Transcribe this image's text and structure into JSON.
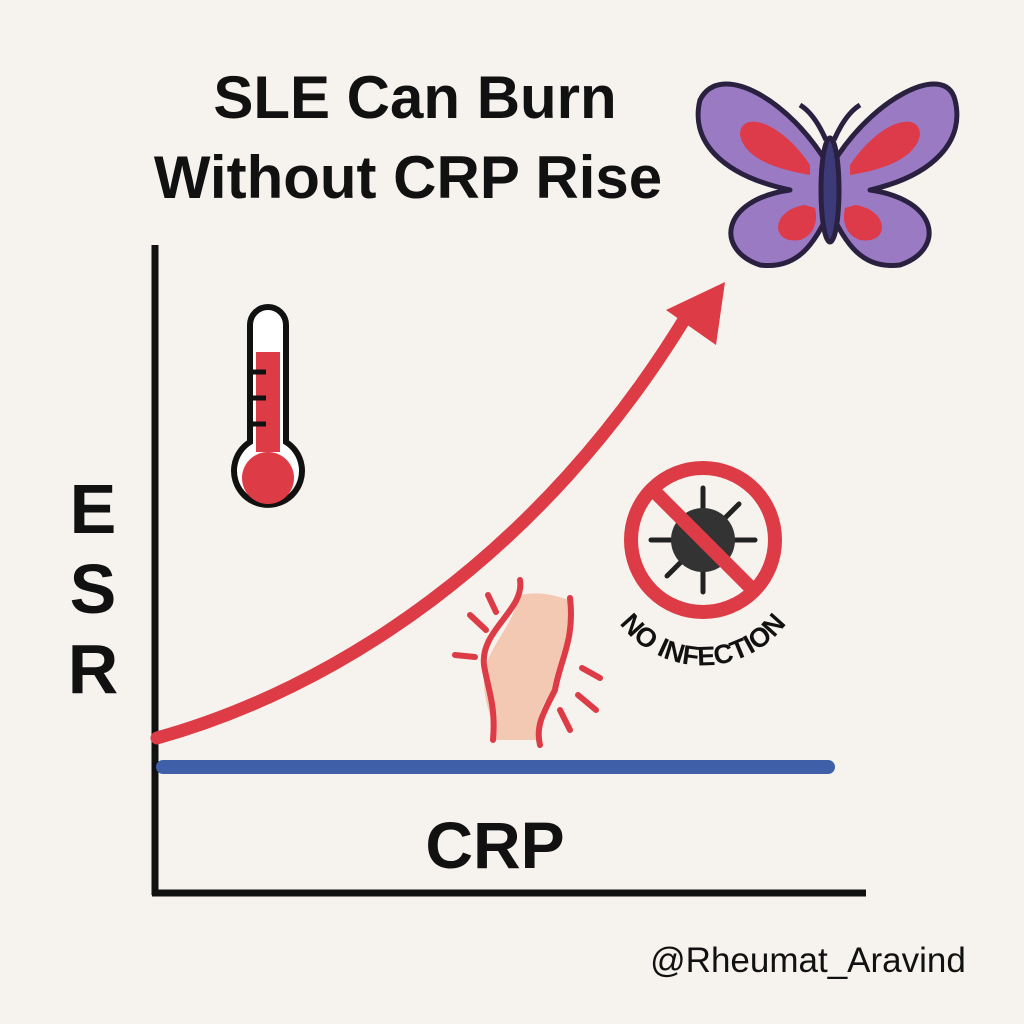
{
  "header": {
    "title_lines": [
      "SLE Can Burn",
      "Without CRP Rise"
    ]
  },
  "axes": {
    "y_label": "ESR",
    "x_label": "CRP"
  },
  "badge": {
    "text": "NO INFECTION"
  },
  "footer": {
    "handle": "@Rheumat_Aravind"
  }
}
